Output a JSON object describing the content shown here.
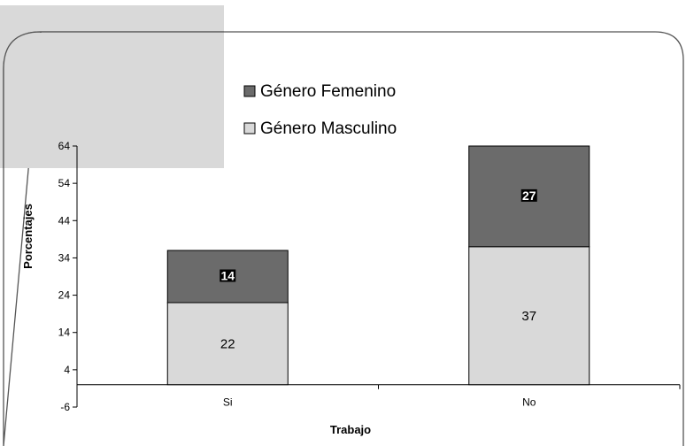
{
  "chart_data": {
    "type": "bar",
    "stacked": true,
    "categories": [
      "Si",
      "No"
    ],
    "series": [
      {
        "name": "Género Masculino",
        "values": [
          22,
          37
        ],
        "color": "#d9d9d9"
      },
      {
        "name": "Género Femenino",
        "values": [
          14,
          27
        ],
        "color": "#6b6b6b"
      }
    ],
    "xlabel": "Trabajo",
    "ylabel": "Porcentajes",
    "ylim": [
      -6,
      64
    ],
    "yticks": [
      -6,
      4,
      14,
      24,
      34,
      44,
      54,
      64
    ],
    "legend_position": "top-center",
    "grid": false
  }
}
